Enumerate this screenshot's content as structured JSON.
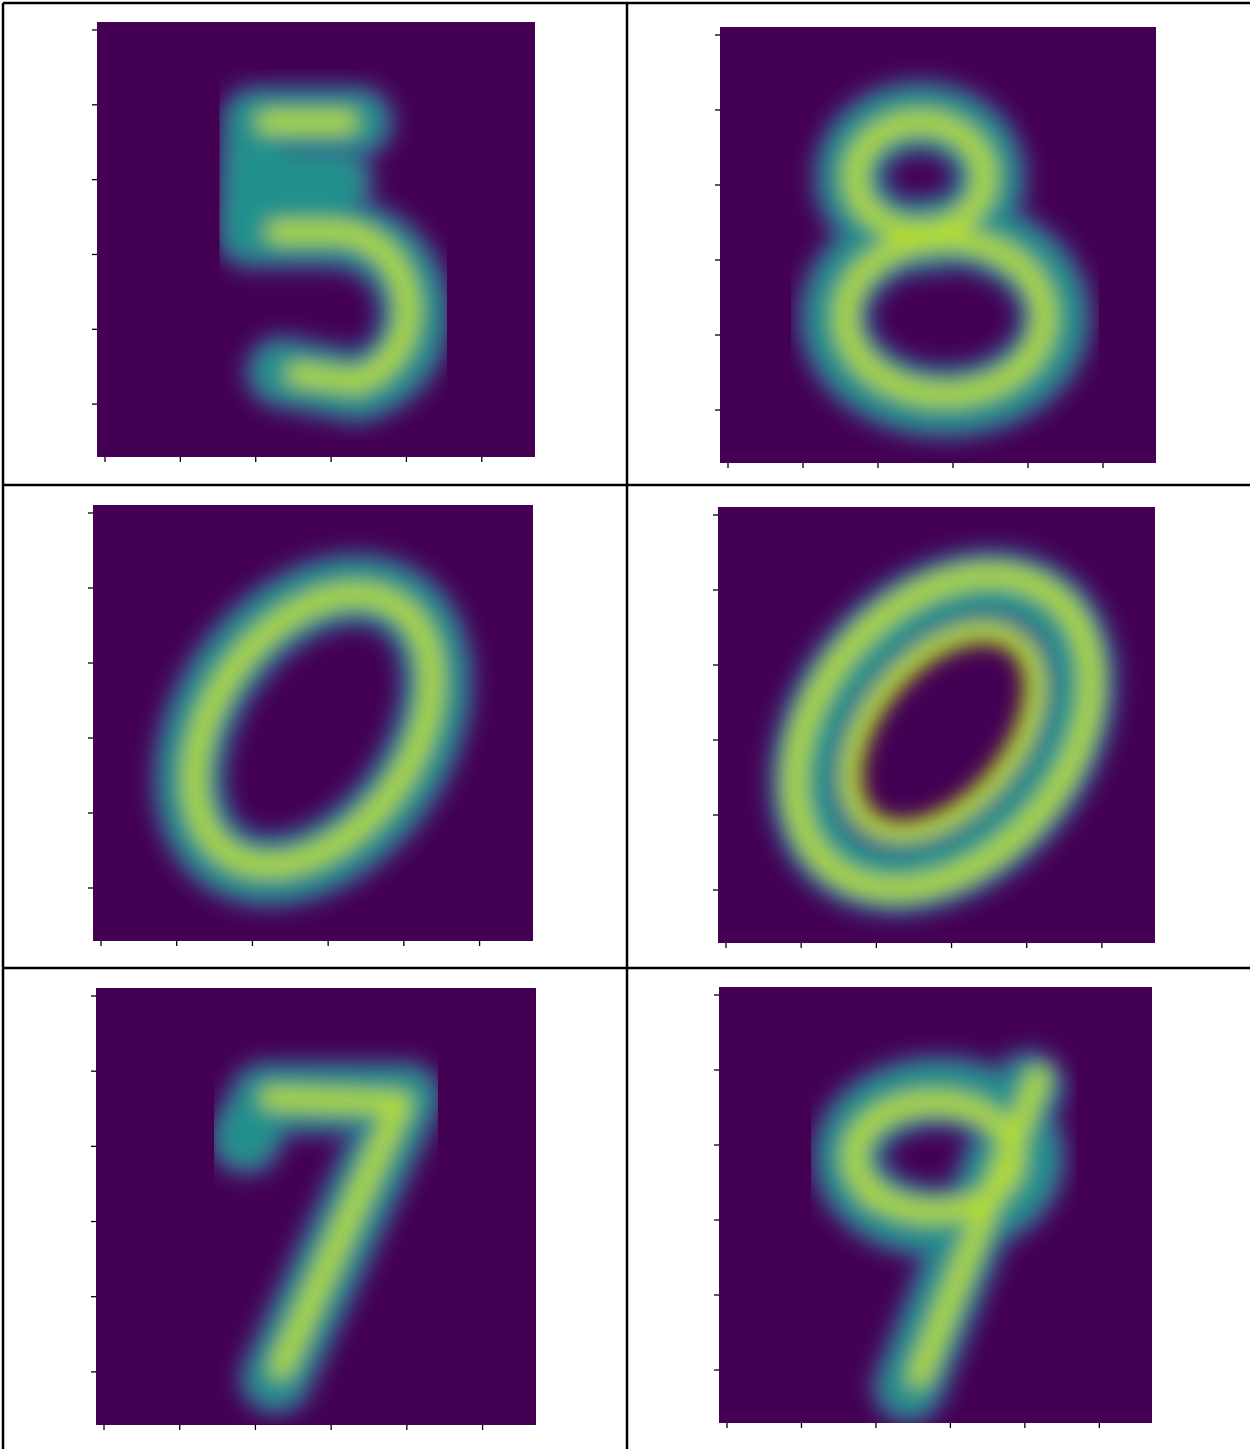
{
  "grid": {
    "rows": 3,
    "columns": 2
  }
}
